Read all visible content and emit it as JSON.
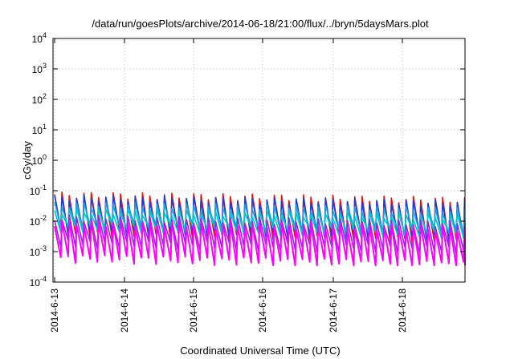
{
  "chart_data": {
    "type": "line",
    "title": "/data/run/goesPlots/archive/2014-06-18/21:00/flux/../bryn/5daysMars.plot",
    "xlabel": "Coordinated Universal Time (UTC)",
    "ylabel": "cGy/day",
    "y_scale": "log",
    "ylim": [
      0.0001,
      10000
    ],
    "xlim": [
      "2014-06-13",
      "2014-06-18 21:00"
    ],
    "grid": true,
    "legend": "none",
    "y_ticks": [
      {
        "base": "10",
        "exp": "-4"
      },
      {
        "base": "10",
        "exp": "-3"
      },
      {
        "base": "10",
        "exp": "-2"
      },
      {
        "base": "10",
        "exp": "-1"
      },
      {
        "base": "10",
        "exp": "0"
      },
      {
        "base": "10",
        "exp": "1"
      },
      {
        "base": "10",
        "exp": "2"
      },
      {
        "base": "10",
        "exp": "3"
      },
      {
        "base": "10",
        "exp": "4"
      }
    ],
    "x_ticks": [
      "2014-6-13",
      "2014-6-14",
      "2014-6-15",
      "2014-6-16",
      "2014-6-17",
      "2014-6-18"
    ],
    "pattern": {
      "cycles_per_day": 9.5,
      "band_top_initial": 0.08,
      "band_top_late": 0.05,
      "band_bottom_initial": 0.001,
      "band_bottom_late": 0.0005
    },
    "series": [
      {
        "color": "#e8130b",
        "peak": 0.075,
        "trough": 0.004
      },
      {
        "color": "#1f3fd9",
        "peak": 0.06,
        "trough": 0.005
      },
      {
        "color": "#20a0e0",
        "peak": 0.035,
        "trough": 0.007
      },
      {
        "color": "#00c8c8",
        "peak": 0.022,
        "trough": 0.006
      },
      {
        "color": "#8a2be2",
        "peak": 0.013,
        "trough": 0.0018
      },
      {
        "color": "#ff00ff",
        "peak": 0.009,
        "trough": 0.0006
      }
    ]
  }
}
